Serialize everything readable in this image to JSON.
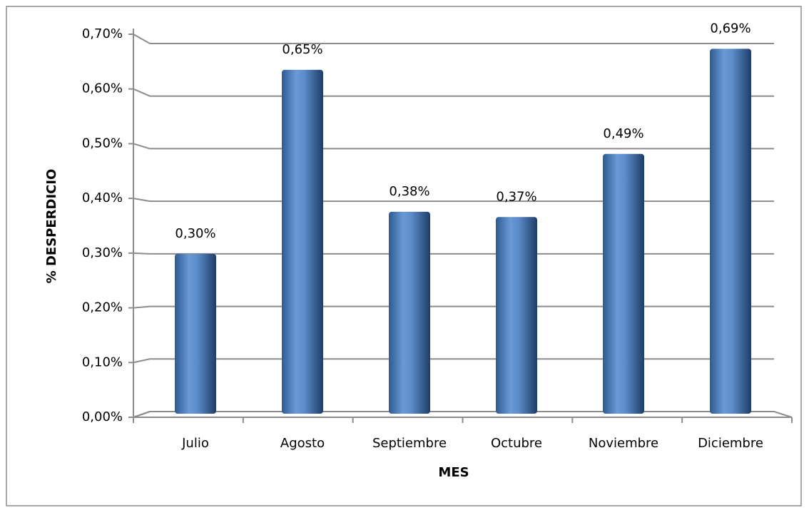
{
  "chart_data": {
    "type": "bar",
    "categories": [
      "Julio",
      "Agosto",
      "Septiembre",
      "Octubre",
      "Noviembre",
      "Diciembre"
    ],
    "values": [
      0.3,
      0.65,
      0.38,
      0.37,
      0.49,
      0.69
    ],
    "value_labels": [
      "0,30%",
      "0,65%",
      "0,38%",
      "0,37%",
      "0,49%",
      "0,69%"
    ],
    "color": "#4f81bd",
    "x_label": "MES",
    "y_label": "% DESPERDICIO",
    "ylim": [
      0,
      0.7
    ],
    "yticks": [
      {
        "value": 0,
        "label": "0,00%"
      },
      {
        "value": 0.1,
        "label": "0,10%"
      },
      {
        "value": 0.2,
        "label": "0,20%"
      },
      {
        "value": 0.3,
        "label": "0,30%"
      },
      {
        "value": 0.4,
        "label": "0,40%"
      },
      {
        "value": 0.5,
        "label": "0,50%"
      },
      {
        "value": 0.6,
        "label": "0,60%"
      },
      {
        "value": 0.7,
        "label": "0,70%"
      }
    ],
    "grid": true
  }
}
